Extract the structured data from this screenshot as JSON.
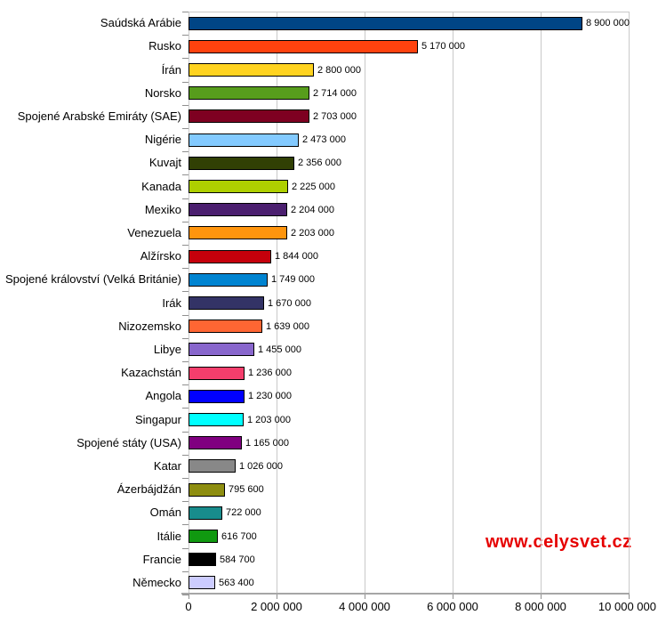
{
  "watermark": {
    "text": "www.celysvet.cz",
    "color": "#e60000"
  },
  "chart_data": {
    "type": "bar",
    "orientation": "horizontal",
    "title": "",
    "xlabel": "",
    "ylabel": "",
    "xlim": [
      0,
      10000000
    ],
    "grid": true,
    "legend": "none",
    "categories": [
      "Saúdská Arábie",
      "Rusko",
      "Írán",
      "Norsko",
      "Spojené Arabské Emiráty (SAE)",
      "Nigérie",
      "Kuvajt",
      "Kanada",
      "Mexiko",
      "Venezuela",
      "Alžírsko",
      "Spojené království (Velká Británie)",
      "Irák",
      "Nizozemsko",
      "Libye",
      "Kazachstán",
      "Angola",
      "Singapur",
      "Spojené státy (USA)",
      "Katar",
      "Ázerbájdžán",
      "Omán",
      "Itálie",
      "Francie",
      "Německo"
    ],
    "values": [
      8900000,
      5170000,
      2800000,
      2714000,
      2703000,
      2473000,
      2356000,
      2225000,
      2204000,
      2203000,
      1844000,
      1749000,
      1670000,
      1639000,
      1455000,
      1236000,
      1230000,
      1203000,
      1165000,
      1026000,
      795600,
      722000,
      616700,
      584700,
      563400
    ],
    "value_labels": [
      "8 900 000",
      "5 170 000",
      "2 800 000",
      "2 714 000",
      "2 703 000",
      "2 473 000",
      "2 356 000",
      "2 225 000",
      "2 204 000",
      "2 203 000",
      "1 844 000",
      "1 749 000",
      "1 670 000",
      "1 639 000",
      "1 455 000",
      "1 236 000",
      "1 230 000",
      "1 203 000",
      "1 165 000",
      "1 026 000",
      "795 600",
      "722 000",
      "616 700",
      "584 700",
      "563 400"
    ],
    "bar_colors": [
      "#004586",
      "#ff420e",
      "#ffd320",
      "#579d1c",
      "#7e0021",
      "#83caff",
      "#314004",
      "#aecf00",
      "#4b1f6f",
      "#ff950e",
      "#c5000b",
      "#0084d1",
      "#333366",
      "#ff6633",
      "#8866cc",
      "#f43e6c",
      "#0000ff",
      "#00ffff",
      "#800080",
      "#888888",
      "#8e8e10",
      "#188c8c",
      "#109910",
      "#000000",
      "#ccccff"
    ],
    "x_ticks": [
      0,
      2000000,
      4000000,
      6000000,
      8000000,
      10000000
    ],
    "x_tick_labels": [
      "0",
      "2 000 000",
      "4 000 000",
      "6 000 000",
      "8 000 000",
      "10 000 000"
    ]
  }
}
